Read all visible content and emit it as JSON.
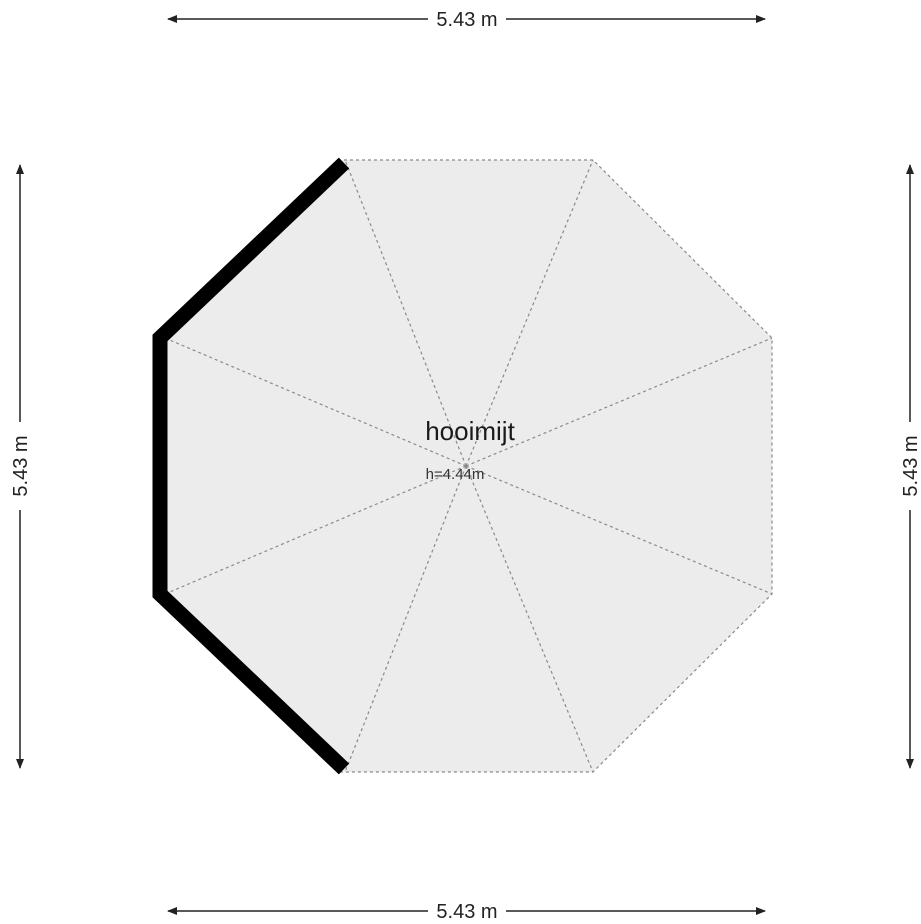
{
  "dimensions": {
    "top": "5.43 m",
    "bottom": "5.43 m",
    "left": "5.43 m",
    "right": "5.43 m"
  },
  "room": {
    "name": "hooimijt",
    "height": "h=4.44m"
  },
  "colors": {
    "floor_fill": "#ececec",
    "wall": "#000000",
    "guide_line": "#8a8a8a",
    "dimension_line": "#222222"
  }
}
